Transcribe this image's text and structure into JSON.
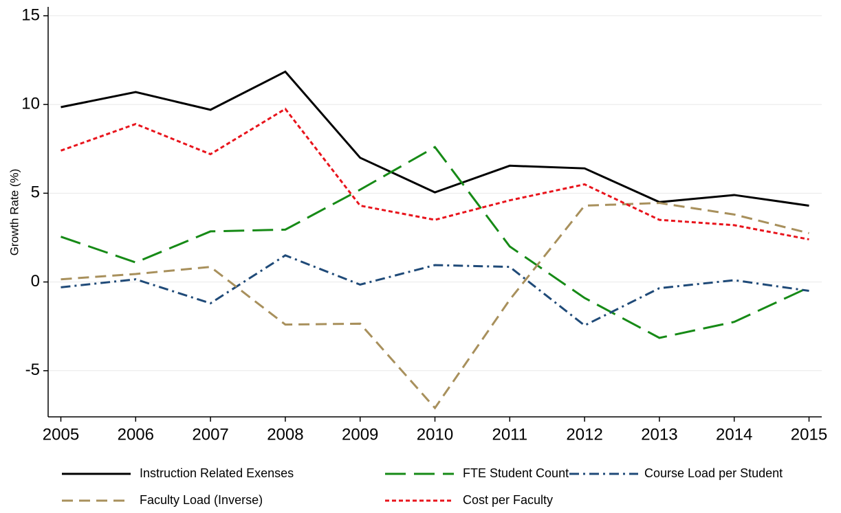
{
  "chart_data": {
    "type": "line",
    "y_label": "Growth Rate (%)",
    "x": [
      2005,
      2006,
      2007,
      2008,
      2009,
      2010,
      2011,
      2012,
      2013,
      2014,
      2015
    ],
    "xlim": [
      2004.83,
      2015.17
    ],
    "xticks": [
      2005,
      2006,
      2007,
      2008,
      2009,
      2010,
      2011,
      2012,
      2013,
      2014,
      2015
    ],
    "ylim": [
      -7.6,
      15.5
    ],
    "yticks": [
      -5,
      0,
      5,
      10,
      15
    ],
    "grid": true,
    "legend_position": "bottom",
    "series": [
      {
        "name": "Instruction Related Exenses",
        "color": "#000000",
        "dash": "solid",
        "values": [
          9.85,
          10.7,
          9.7,
          11.85,
          7.0,
          5.05,
          6.55,
          6.4,
          4.5,
          4.9,
          4.3
        ]
      },
      {
        "name": "FTE Student Count",
        "color": "#168a16",
        "dash": "longdash",
        "values": [
          2.55,
          1.1,
          2.85,
          2.95,
          5.2,
          7.6,
          2.0,
          -0.9,
          -3.15,
          -2.25,
          -0.3
        ]
      },
      {
        "name": "Course Load per Student",
        "color": "#1f4a78",
        "dash": "dashdot",
        "values": [
          -0.3,
          0.15,
          -1.2,
          1.5,
          -0.15,
          0.95,
          0.85,
          -2.45,
          -0.35,
          0.1,
          -0.5
        ]
      },
      {
        "name": "Faculty Load (Inverse)",
        "color": "#a8905c",
        "dash": "dash",
        "values": [
          0.15,
          0.45,
          0.85,
          -2.4,
          -2.35,
          -7.1,
          -1.0,
          4.3,
          4.45,
          3.8,
          2.75
        ]
      },
      {
        "name": "Cost per Faculty",
        "color": "#e8141c",
        "dash": "dot",
        "values": [
          7.4,
          8.9,
          7.2,
          9.75,
          4.3,
          3.5,
          4.6,
          5.5,
          3.5,
          3.2,
          2.4
        ]
      }
    ]
  }
}
